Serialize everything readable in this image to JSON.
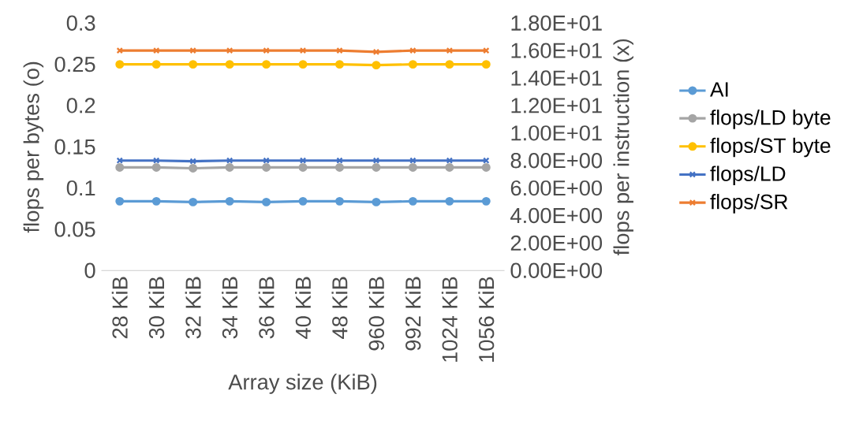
{
  "chart_data": {
    "type": "line",
    "categories": [
      "28 KiB",
      "30 KiB",
      "32 KiB",
      "34 KiB",
      "36 KiB",
      "40 KiB",
      "48 KiB",
      "960 KiB",
      "992 KiB",
      "1024 KiB",
      "1056 KiB"
    ],
    "series": [
      {
        "name": "AI",
        "color": "#5b9bd5",
        "marker": "circle",
        "values": [
          0.084,
          0.084,
          0.083,
          0.084,
          0.083,
          0.084,
          0.084,
          0.083,
          0.084,
          0.084,
          0.084
        ]
      },
      {
        "name": "flops/LD byte",
        "color": "#a5a5a5",
        "marker": "circle",
        "values": [
          0.125,
          0.125,
          0.124,
          0.125,
          0.125,
          0.125,
          0.125,
          0.125,
          0.125,
          0.125,
          0.125
        ]
      },
      {
        "name": "flops/ST byte",
        "color": "#ffc000",
        "marker": "circle",
        "values": [
          0.25,
          0.25,
          0.25,
          0.25,
          0.25,
          0.25,
          0.25,
          0.249,
          0.25,
          0.25,
          0.25
        ]
      },
      {
        "name": "flops/LD",
        "color": "#4472c4",
        "marker": "cross",
        "axis": "y2",
        "values": [
          8.0,
          8.0,
          7.95,
          8.0,
          8.0,
          8.0,
          8.0,
          8.0,
          8.0,
          8.0,
          8.0
        ]
      },
      {
        "name": "flops/SR",
        "color": "#ed7d31",
        "marker": "cross",
        "axis": "y2",
        "values": [
          16.0,
          16.0,
          16.0,
          16.0,
          16.0,
          16.0,
          16.0,
          15.9,
          16.0,
          16.0,
          16.0
        ]
      }
    ],
    "xlabel": "Array size (KiB)",
    "ylabel": "flops per bytes (o)",
    "y2label": "flops per instruction (x)",
    "ylim": [
      0,
      0.3
    ],
    "yticks": [
      0,
      0.05,
      0.1,
      0.15,
      0.2,
      0.25,
      0.3
    ],
    "y2lim": [
      0,
      18
    ],
    "y2ticks": [
      {
        "value": 0,
        "label": "0.00E+00"
      },
      {
        "value": 2,
        "label": "2.00E+00"
      },
      {
        "value": 4,
        "label": "4.00E+00"
      },
      {
        "value": 6,
        "label": "6.00E+00"
      },
      {
        "value": 8,
        "label": "8.00E+00"
      },
      {
        "value": 10,
        "label": "1.00E+01"
      },
      {
        "value": 12,
        "label": "1.20E+01"
      },
      {
        "value": 14,
        "label": "1.40E+01"
      },
      {
        "value": 16,
        "label": "1.60E+01"
      },
      {
        "value": 18,
        "label": "1.80E+01"
      }
    ],
    "grid": false,
    "legend": "right"
  }
}
